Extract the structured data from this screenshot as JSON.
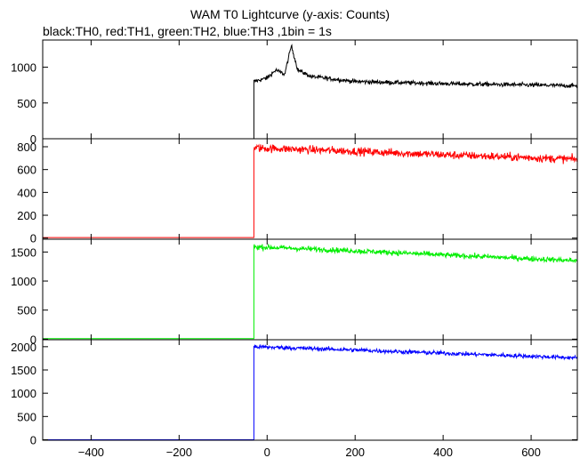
{
  "chart_data": {
    "type": "line",
    "title": "WAM T0 Lightcurve (y-axis: Counts)",
    "subtitle": "black:TH0, red:TH1, green:TH2, blue:TH3 ,1bin = 1s",
    "xlabel": "",
    "ylabel": "",
    "xlim": [
      -510,
      705
    ],
    "x_ticks": [
      -400,
      -200,
      0,
      200,
      400,
      600
    ],
    "x_tick_labels": [
      "−400",
      "−200",
      "0",
      "200",
      "400",
      "600"
    ],
    "grid": false,
    "trigger_time": -30,
    "panels": [
      {
        "name": "TH0",
        "color": "#000000",
        "ylim": [
          0,
          1380
        ],
        "y_ticks": [
          0,
          500,
          1000
        ],
        "pre_level": 0,
        "profile": [
          [
            -30,
            800
          ],
          [
            0,
            850
          ],
          [
            20,
            960
          ],
          [
            40,
            900
          ],
          [
            55,
            1300
          ],
          [
            70,
            960
          ],
          [
            100,
            870
          ],
          [
            200,
            800
          ],
          [
            400,
            770
          ],
          [
            705,
            740
          ]
        ],
        "noise": 30
      },
      {
        "name": "TH1",
        "color": "#ff0000",
        "ylim": [
          -10,
          870
        ],
        "y_ticks": [
          0,
          200,
          400,
          600,
          800
        ],
        "pre_level": 5,
        "profile": [
          [
            -30,
            790
          ],
          [
            200,
            760
          ],
          [
            400,
            730
          ],
          [
            705,
            690
          ]
        ],
        "noise": 35
      },
      {
        "name": "TH2",
        "color": "#00ee00",
        "ylim": [
          -10,
          1720
        ],
        "y_ticks": [
          0,
          500,
          1000,
          1500
        ],
        "pre_level": 10,
        "profile": [
          [
            -30,
            1590
          ],
          [
            200,
            1520
          ],
          [
            400,
            1450
          ],
          [
            705,
            1350
          ]
        ],
        "noise": 45
      },
      {
        "name": "TH3",
        "color": "#0000ff",
        "ylim": [
          -10,
          2150
        ],
        "y_ticks": [
          0,
          500,
          1000,
          1500,
          2000
        ],
        "pre_level": 0,
        "profile": [
          [
            -30,
            2000
          ],
          [
            200,
            1930
          ],
          [
            400,
            1860
          ],
          [
            705,
            1760
          ]
        ],
        "noise": 45
      }
    ]
  }
}
